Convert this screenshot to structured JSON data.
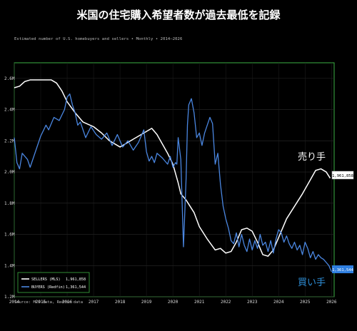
{
  "title": "米国の住宅購入希望者数が過去最低を記録",
  "subtitle": "Estimated number of U.S. homebuyers and sellers  •  Monthly  •  2014–2026",
  "source": "Source: MLS data, Redfin data",
  "colors": {
    "background": "#000000",
    "frame": "#3cb043",
    "sellers": "#ffffff",
    "buyers": "#4a86e0",
    "buyers_label": "#2e8fd8",
    "endlabel_buyers_bg": "#2f7fe0"
  },
  "annotations": {
    "sellers": "売り手",
    "buyers": "買い手"
  },
  "chart_data": {
    "type": "line",
    "x_unit": "year",
    "xlim": [
      2014,
      2026.1
    ],
    "ylim": [
      1.2,
      2.7
    ],
    "x_ticks": [
      "2014",
      "2015",
      "2016",
      "2017",
      "2018",
      "2019",
      "2020",
      "2021",
      "2022",
      "2023",
      "2024",
      "2025",
      "2026"
    ],
    "y_ticks": [
      "1.2M",
      "1.4M",
      "1.6M",
      "1.8M",
      "2.0M",
      "2.2M",
      "2.4M",
      "2.6M"
    ],
    "grid": true,
    "legend": "bottom-left",
    "series": [
      {
        "name": "SELLERS (MLS)",
        "last_label": "1,961,858",
        "x": [
          2014.0,
          2014.2,
          2014.4,
          2014.6,
          2015.0,
          2015.4,
          2015.6,
          2015.8,
          2016.0,
          2016.3,
          2016.6,
          2017.0,
          2017.3,
          2017.6,
          2018.0,
          2018.2,
          2018.5,
          2018.8,
          2019.0,
          2019.2,
          2019.4,
          2019.6,
          2019.8,
          2020.0,
          2020.2,
          2020.3,
          2020.5,
          2020.8,
          2021.0,
          2021.3,
          2021.6,
          2021.8,
          2022.0,
          2022.2,
          2022.4,
          2022.6,
          2022.8,
          2023.0,
          2023.2,
          2023.4,
          2023.6,
          2023.8,
          2024.0,
          2024.3,
          2024.6,
          2024.9,
          2025.2,
          2025.4,
          2025.6,
          2025.8,
          2025.95
        ],
        "values": [
          2.54,
          2.55,
          2.58,
          2.59,
          2.59,
          2.59,
          2.57,
          2.52,
          2.45,
          2.38,
          2.32,
          2.29,
          2.25,
          2.2,
          2.16,
          2.18,
          2.21,
          2.24,
          2.26,
          2.28,
          2.24,
          2.18,
          2.12,
          2.05,
          1.93,
          1.86,
          1.82,
          1.74,
          1.65,
          1.57,
          1.5,
          1.51,
          1.48,
          1.49,
          1.55,
          1.63,
          1.64,
          1.62,
          1.55,
          1.47,
          1.46,
          1.5,
          1.58,
          1.7,
          1.78,
          1.86,
          1.95,
          2.01,
          2.02,
          2.0,
          1.96
        ]
      },
      {
        "name": "BUYERS (Redfin)",
        "last_label": "1,361,544",
        "x": [
          2014.0,
          2014.1,
          2014.2,
          2014.3,
          2014.5,
          2014.6,
          2014.8,
          2015.0,
          2015.2,
          2015.3,
          2015.5,
          2015.7,
          2015.9,
          2016.0,
          2016.1,
          2016.2,
          2016.3,
          2016.4,
          2016.5,
          2016.7,
          2016.9,
          2017.1,
          2017.3,
          2017.5,
          2017.7,
          2017.9,
          2018.1,
          2018.3,
          2018.5,
          2018.7,
          2018.9,
          2019.0,
          2019.1,
          2019.2,
          2019.3,
          2019.4,
          2019.6,
          2019.8,
          2019.9,
          2020.0,
          2020.1,
          2020.15,
          2020.2,
          2020.3,
          2020.35,
          2020.4,
          2020.5,
          2020.55,
          2020.6,
          2020.7,
          2020.8,
          2020.9,
          2021.0,
          2021.1,
          2021.2,
          2021.3,
          2021.4,
          2021.5,
          2021.6,
          2021.7,
          2021.75,
          2021.8,
          2021.9,
          2022.0,
          2022.1,
          2022.2,
          2022.3,
          2022.4,
          2022.5,
          2022.6,
          2022.7,
          2022.8,
          2022.9,
          2023.0,
          2023.1,
          2023.2,
          2023.3,
          2023.4,
          2023.5,
          2023.6,
          2023.7,
          2023.8,
          2023.9,
          2024.0,
          2024.1,
          2024.2,
          2024.3,
          2024.4,
          2024.5,
          2024.6,
          2024.7,
          2024.8,
          2024.9,
          2025.0,
          2025.1,
          2025.2,
          2025.3,
          2025.4,
          2025.5,
          2025.6,
          2025.7,
          2025.8,
          2025.9,
          2026.0
        ],
        "values": [
          2.22,
          2.06,
          2.02,
          2.12,
          2.08,
          2.03,
          2.13,
          2.23,
          2.3,
          2.27,
          2.35,
          2.33,
          2.4,
          2.48,
          2.5,
          2.43,
          2.38,
          2.3,
          2.32,
          2.22,
          2.29,
          2.24,
          2.21,
          2.25,
          2.17,
          2.24,
          2.16,
          2.2,
          2.14,
          2.19,
          2.27,
          2.13,
          2.07,
          2.1,
          2.06,
          2.12,
          2.09,
          2.05,
          2.1,
          2.03,
          2.06,
          2.05,
          2.22,
          2.08,
          1.8,
          1.52,
          1.96,
          2.3,
          2.43,
          2.47,
          2.38,
          2.22,
          2.25,
          2.17,
          2.25,
          2.3,
          2.35,
          2.31,
          2.05,
          2.12,
          2.02,
          1.92,
          1.78,
          1.7,
          1.64,
          1.56,
          1.54,
          1.61,
          1.52,
          1.6,
          1.53,
          1.49,
          1.57,
          1.5,
          1.56,
          1.51,
          1.6,
          1.53,
          1.55,
          1.49,
          1.56,
          1.48,
          1.57,
          1.63,
          1.61,
          1.55,
          1.59,
          1.54,
          1.51,
          1.55,
          1.5,
          1.53,
          1.47,
          1.55,
          1.51,
          1.45,
          1.49,
          1.44,
          1.47,
          1.45,
          1.44,
          1.42,
          1.4,
          1.36
        ]
      }
    ]
  }
}
